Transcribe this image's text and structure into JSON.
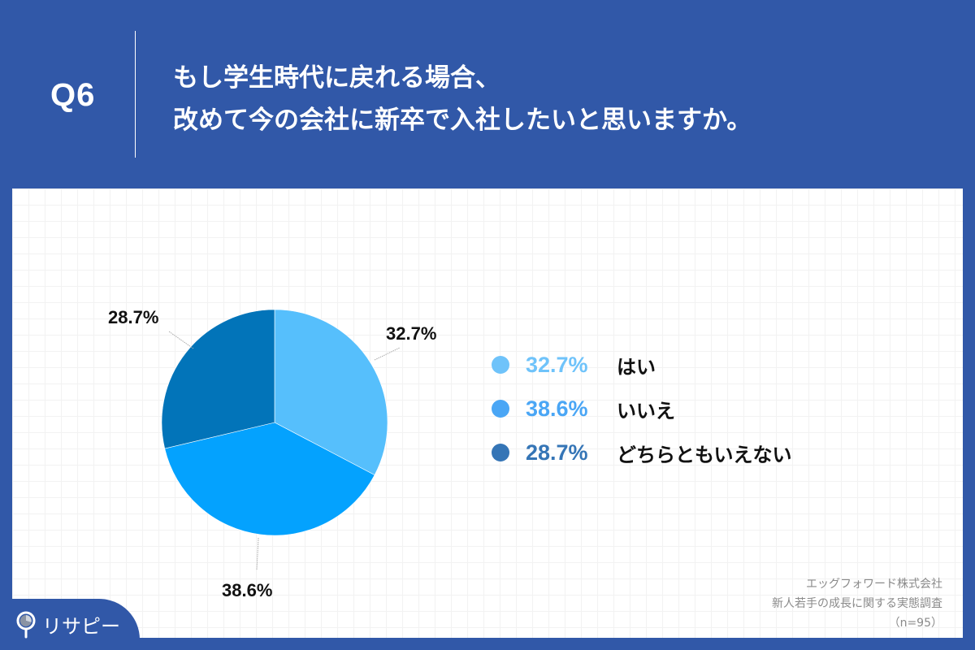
{
  "header": {
    "question_number": "Q6",
    "title_line1": "もし学生時代に戻れる場合、",
    "title_line2": "改めて今の会社に新卒で入社したいと思いますか。"
  },
  "chart_data": {
    "type": "pie",
    "title": "もし学生時代に戻れる場合、改めて今の会社に新卒で入社したいと思いますか。",
    "categories": [
      "はい",
      "いいえ",
      "どちらともいえない"
    ],
    "values": [
      32.7,
      38.6,
      28.7
    ],
    "unit": "%",
    "colors": [
      "#56bffc",
      "#04a2fe",
      "#0274b9"
    ],
    "legend_colors": [
      "#6fc3fa",
      "#4aa6f5",
      "#3575b6"
    ],
    "start_angle_deg": 0,
    "direction": "clockwise",
    "legend_position": "right",
    "data_labels": [
      "32.7%",
      "38.6%",
      "28.7%"
    ]
  },
  "legend": {
    "items": [
      {
        "pct": "32.7%",
        "label": "はい",
        "color": "#6fc3fa"
      },
      {
        "pct": "38.6%",
        "label": "いいえ",
        "color": "#4aa6f5"
      },
      {
        "pct": "28.7%",
        "label": "どちらともいえない",
        "color": "#3575b6"
      }
    ]
  },
  "source": {
    "company": "エッグフォワード株式会社",
    "survey": "新人若手の成長に関する実態調査",
    "sample": "（n=95）"
  },
  "logo": {
    "text": "リサピー"
  }
}
